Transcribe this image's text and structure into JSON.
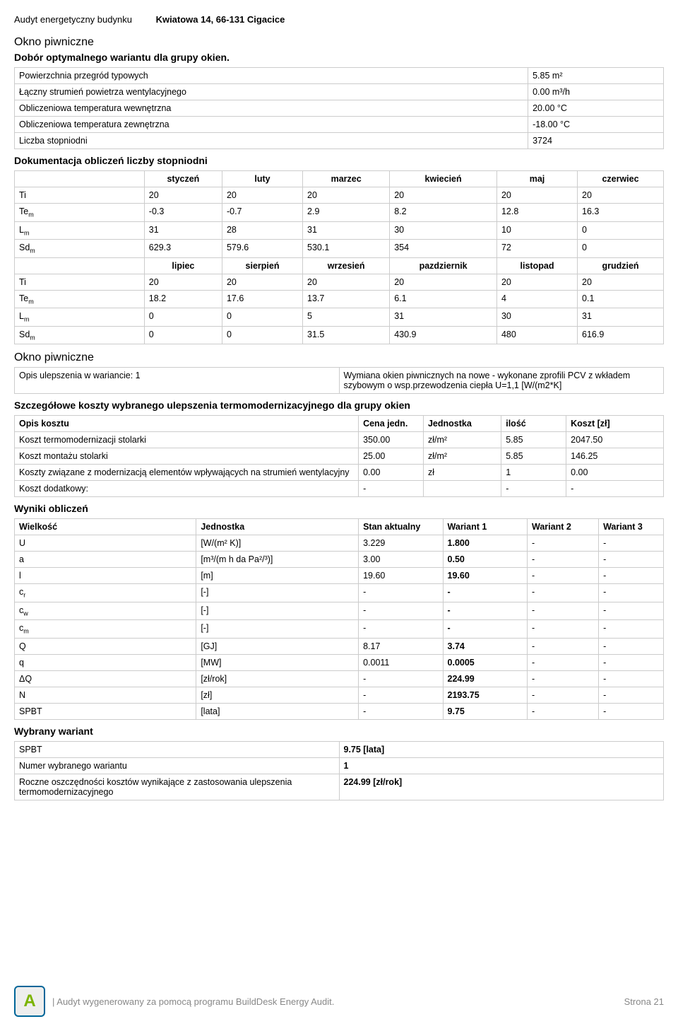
{
  "header": {
    "label": "Audyt energetyczny budynku",
    "address": "Kwiatowa 14, 66-131 Cigacice"
  },
  "section1": {
    "title": "Okno piwniczne",
    "subtitle": "Dobór optymalnego wariantu dla grupy okien.",
    "rows": [
      {
        "k": "Powierzchnia przegród typowych",
        "v": "5.85  m²"
      },
      {
        "k": "Łączny strumień powietrza wentylacyjnego",
        "v": "0.00  m³/h"
      },
      {
        "k": "Obliczeniowa temperatura wewnętrzna",
        "v": "20.00  °C"
      },
      {
        "k": "Obliczeniowa temperatura zewnętrzna",
        "v": "-18.00  °C"
      },
      {
        "k": "Liczba stopniodni",
        "v": "3724"
      }
    ],
    "docTitle": "Dokumentacja obliczeń liczby stopniodni",
    "months1": [
      "styczeń",
      "luty",
      "marzec",
      "kwiecień",
      "maj",
      "czerwiec"
    ],
    "months2": [
      "lipiec",
      "sierpień",
      "wrzesień",
      "pazdziernik",
      "listopad",
      "grudzień"
    ],
    "labels": {
      "ti": "Ti",
      "tem": "Te",
      "lm": "L",
      "sdm": "Sd"
    },
    "block1": {
      "ti": [
        "20",
        "20",
        "20",
        "20",
        "20",
        "20"
      ],
      "tem": [
        "-0.3",
        "-0.7",
        "2.9",
        "8.2",
        "12.8",
        "16.3"
      ],
      "lm": [
        "31",
        "28",
        "31",
        "30",
        "10",
        "0"
      ],
      "sdm": [
        "629.3",
        "579.6",
        "530.1",
        "354",
        "72",
        "0"
      ]
    },
    "block2": {
      "ti": [
        "20",
        "20",
        "20",
        "20",
        "20",
        "20"
      ],
      "tem": [
        "18.2",
        "17.6",
        "13.7",
        "6.1",
        "4",
        "0.1"
      ],
      "lm": [
        "0",
        "0",
        "5",
        "31",
        "30",
        "31"
      ],
      "sdm": [
        "0",
        "0",
        "31.5",
        "430.9",
        "480",
        "616.9"
      ]
    }
  },
  "section2": {
    "title": "Okno piwniczne",
    "opisLabel": "Opis ulepszenia w wariancie: 1",
    "opisValue": "Wymiana okien piwnicznych na nowe - wykonane zprofili PCV z wkładem szybowym o wsp.przewodzenia ciepła U=1,1 [W/(m2*K]",
    "detailTitle": "Szczegółowe koszty wybranego ulepszenia termomodernizacyjnego dla grupy okien",
    "th": [
      "Opis kosztu",
      "Cena jedn.",
      "Jednostka",
      "ilość",
      "Koszt [zł]"
    ],
    "rows": [
      [
        "Koszt termomodernizacji stolarki",
        "350.00",
        "zł/m²",
        "5.85",
        "2047.50"
      ],
      [
        "Koszt montażu stolarki",
        "25.00",
        "zł/m²",
        "5.85",
        "146.25"
      ],
      [
        "Koszty związane z modernizacją elementów wpływających na strumień wentylacyjny",
        "0.00",
        "zł",
        "1",
        "0.00"
      ],
      [
        "Koszt dodatkowy:",
        "-",
        "",
        "-",
        "-"
      ]
    ]
  },
  "results": {
    "title": "Wyniki obliczeń",
    "th": [
      "Wielkość",
      "Jednostka",
      "Stan aktualny",
      "Wariant 1",
      "Wariant 2",
      "Wariant 3"
    ],
    "rows": [
      {
        "w": "U",
        "j": "[W/(m² K)]",
        "a": "3.229",
        "v1": "1.800",
        "v2": "-",
        "v3": "-"
      },
      {
        "w": "a",
        "j": "[m³/(m h da Pa²/³)]",
        "a": "3.00",
        "v1": "0.50",
        "v2": "-",
        "v3": "-"
      },
      {
        "w": "l",
        "j": "[m]",
        "a": "19.60",
        "v1": "19.60",
        "v2": "-",
        "v3": "-"
      },
      {
        "w": "cr",
        "sub": "r",
        "j": "[-]",
        "a": "-",
        "v1": "-",
        "v2": "-",
        "v3": "-"
      },
      {
        "w": "cw",
        "sub": "w",
        "j": "[-]",
        "a": "-",
        "v1": "-",
        "v2": "-",
        "v3": "-"
      },
      {
        "w": "cm",
        "sub": "m",
        "j": "[-]",
        "a": "-",
        "v1": "-",
        "v2": "-",
        "v3": "-"
      },
      {
        "w": "Q",
        "j": "[GJ]",
        "a": "8.17",
        "v1": "3.74",
        "v2": "-",
        "v3": "-"
      },
      {
        "w": "q",
        "j": "[MW]",
        "a": "0.0011",
        "v1": "0.0005",
        "v2": "-",
        "v3": "-"
      },
      {
        "w": "ΔQ",
        "j": "[zł/rok]",
        "a": "-",
        "v1": "224.99",
        "v2": "-",
        "v3": "-"
      },
      {
        "w": "N",
        "j": "[zł]",
        "a": "-",
        "v1": "2193.75",
        "v2": "-",
        "v3": "-"
      },
      {
        "w": "SPBT",
        "j": "[lata]",
        "a": "-",
        "v1": "9.75",
        "v2": "-",
        "v3": "-"
      }
    ]
  },
  "variant": {
    "title": "Wybrany wariant",
    "rows": [
      {
        "k": "SPBT",
        "v": "9.75 [lata]"
      },
      {
        "k": "Numer wybranego wariantu",
        "v": "1"
      },
      {
        "k": "Roczne oszczędności kosztów wynikające z zastosowania ulepszenia termomodernizacyjnego",
        "v": "224.99 [zł/rok]"
      }
    ]
  },
  "footer": {
    "text": "| Audyt wygenerowany za pomocą programu BuildDesk Energy Audit.",
    "page": "Strona 21",
    "logo": "A"
  },
  "colors": {
    "border": "#cccccc",
    "footerText": "#888888"
  }
}
